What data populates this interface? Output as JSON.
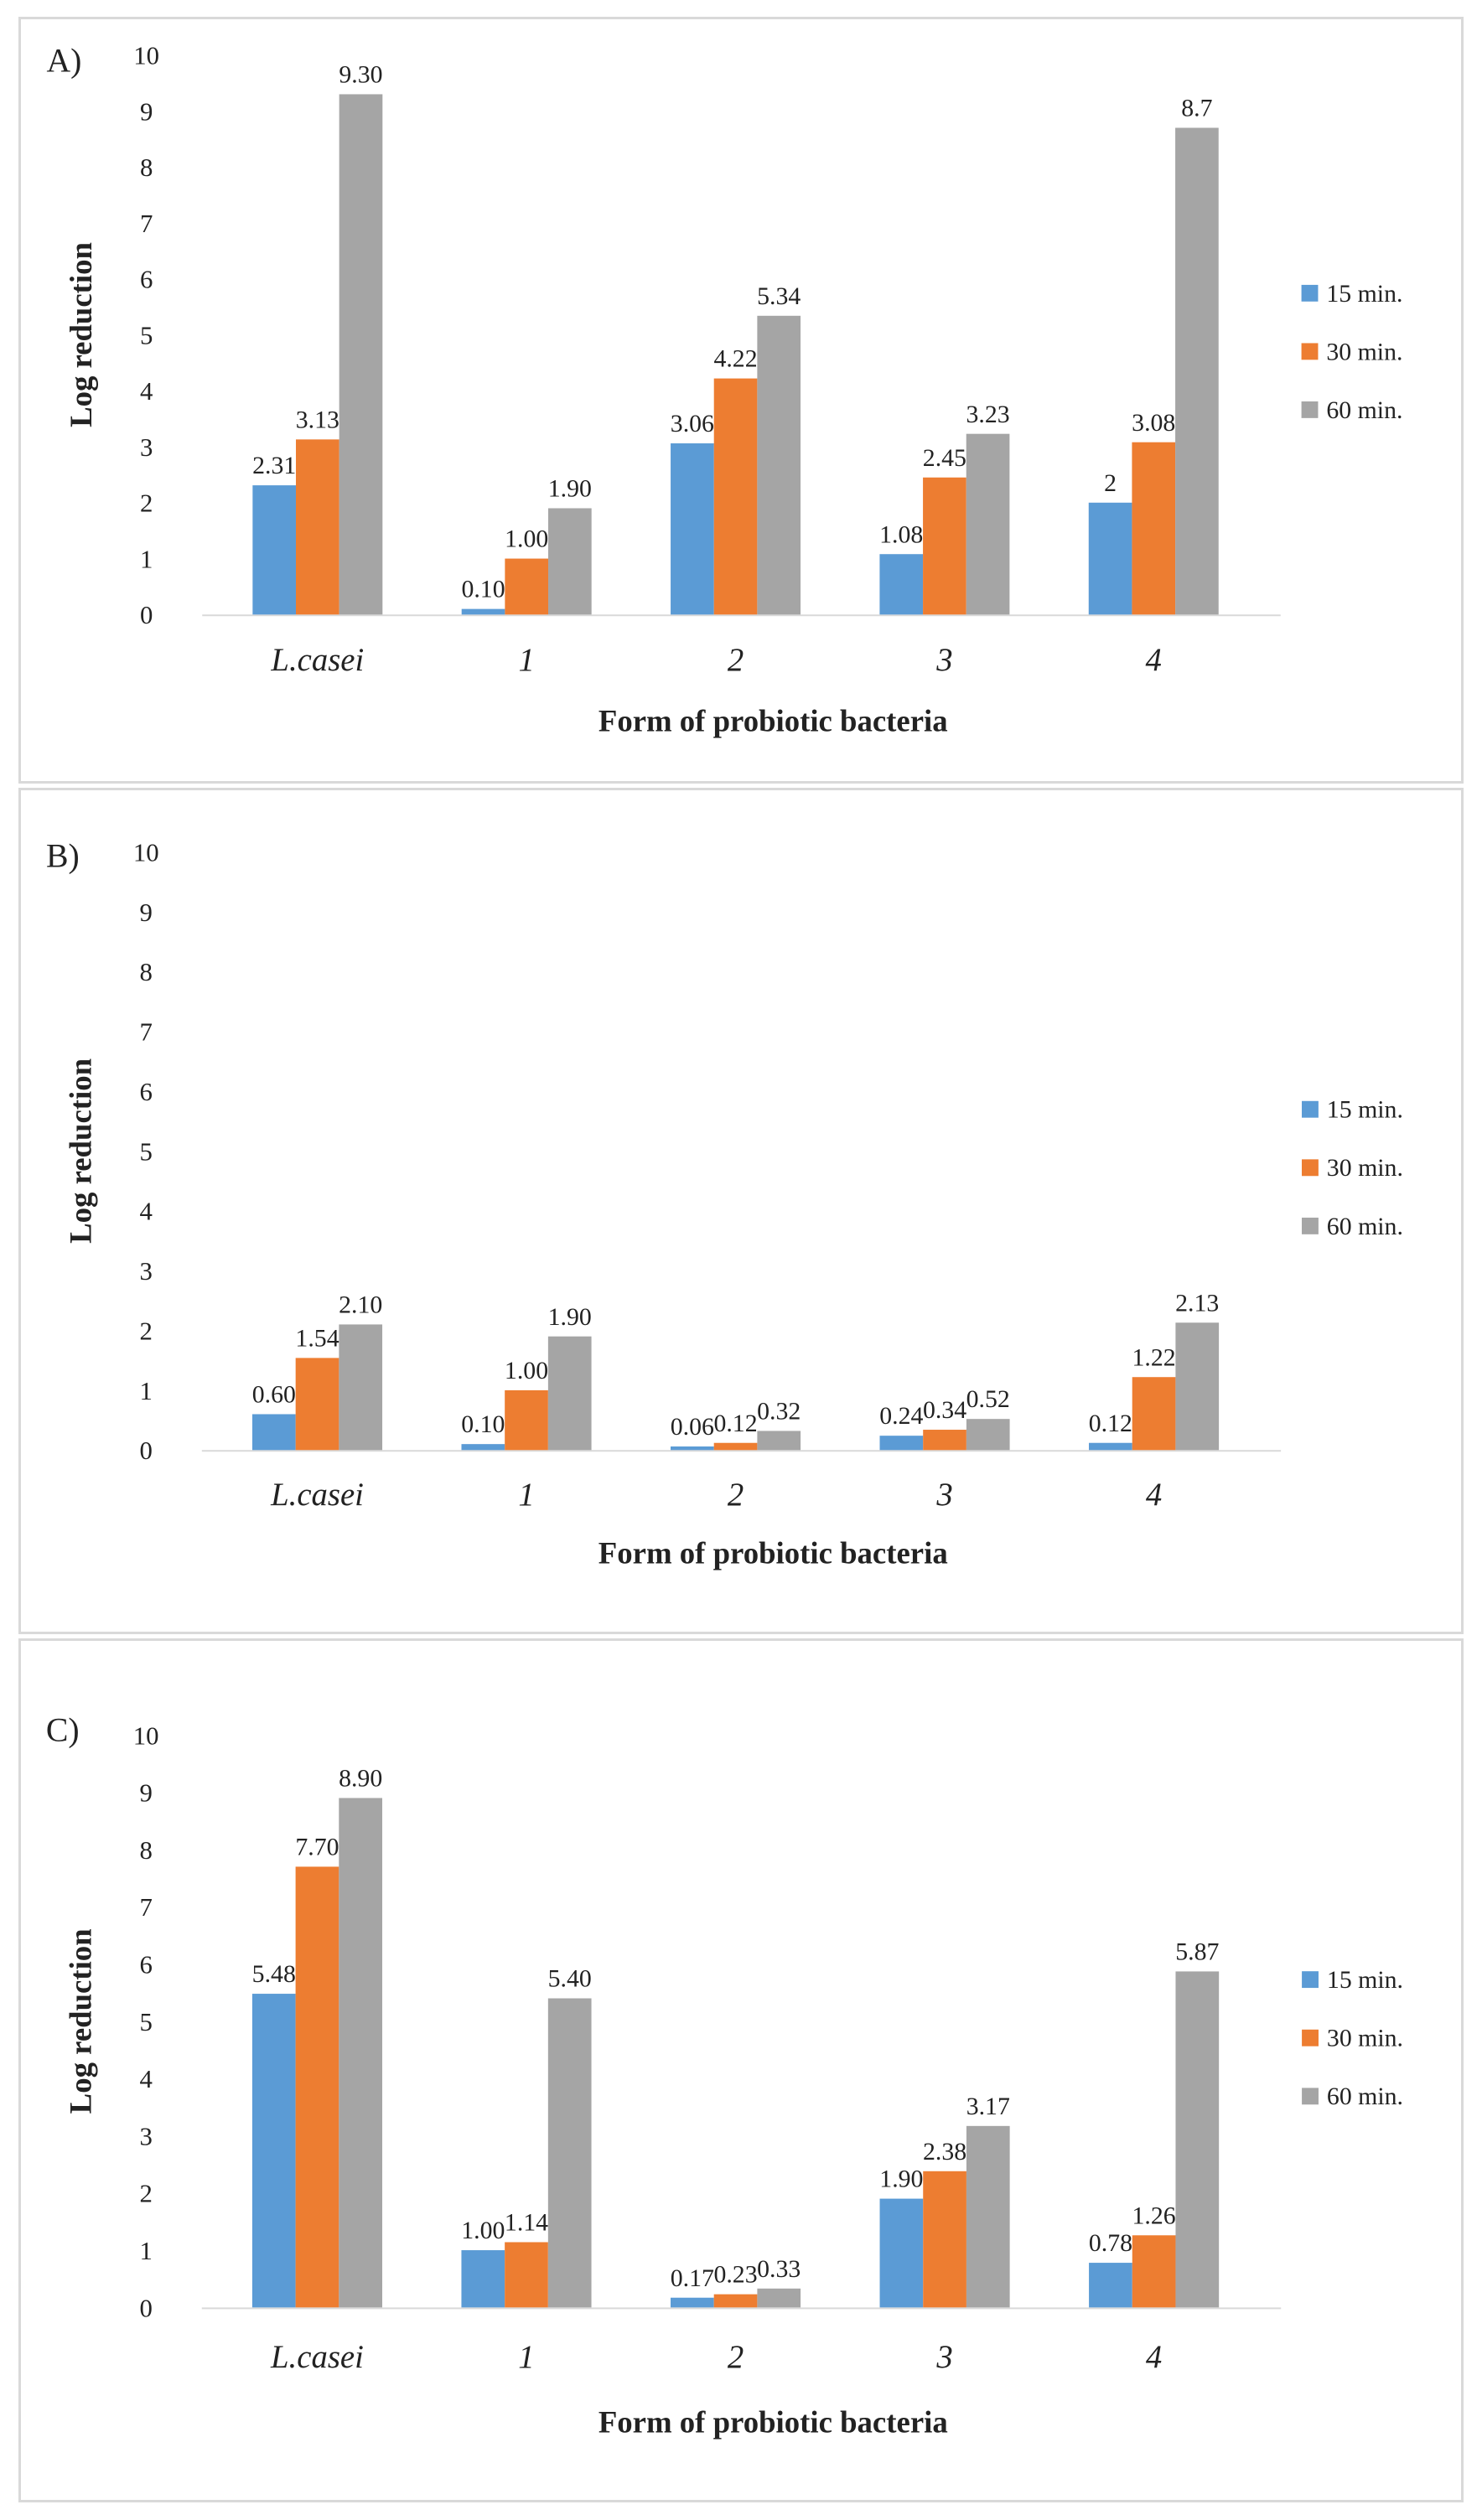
{
  "chart_data": [
    {
      "type": "bar",
      "panel_label": "A)",
      "categories": [
        "L.casei",
        "1",
        "2",
        "3",
        "4"
      ],
      "series": [
        {
          "name": "15 min.",
          "values": [
            2.31,
            0.1,
            3.06,
            1.08,
            2
          ],
          "labels": [
            "2.31",
            "0.10",
            "3.06",
            "1.08",
            "2"
          ]
        },
        {
          "name": "30 min.",
          "values": [
            3.13,
            1.0,
            4.22,
            2.45,
            3.08
          ],
          "labels": [
            "3.13",
            "1.00",
            "4.22",
            "2.45",
            "3.08"
          ]
        },
        {
          "name": "60 min.",
          "values": [
            9.3,
            1.9,
            5.34,
            3.23,
            8.7
          ],
          "labels": [
            "9.30",
            "1.90",
            "5.34",
            "3.23",
            "8.7"
          ]
        }
      ],
      "xlabel": "Form of probiotic bacteria",
      "ylabel": "Log reduction",
      "ylim": [
        0,
        10
      ],
      "yticks": [
        "0",
        "1",
        "2",
        "3",
        "4",
        "5",
        "6",
        "7",
        "8",
        "9",
        "10"
      ],
      "legend_position": "right"
    },
    {
      "type": "bar",
      "panel_label": "B)",
      "categories": [
        "L.casei",
        "1",
        "2",
        "3",
        "4"
      ],
      "series": [
        {
          "name": "15 min.",
          "values": [
            0.6,
            0.1,
            0.06,
            0.24,
            0.12
          ],
          "labels": [
            "0.60",
            "0.10",
            "0.06",
            "0.24",
            "0.12"
          ]
        },
        {
          "name": "30 min.",
          "values": [
            1.54,
            1.0,
            0.12,
            0.34,
            1.22
          ],
          "labels": [
            "1.54",
            "1.00",
            "0.12",
            "0.34",
            "1.22"
          ]
        },
        {
          "name": "60 min.",
          "values": [
            2.1,
            1.9,
            0.32,
            0.52,
            2.13
          ],
          "labels": [
            "2.10",
            "1.90",
            "0.32",
            "0.52",
            "2.13"
          ]
        }
      ],
      "xlabel": "Form of probiotic bacteria",
      "ylabel": "Log reduction",
      "ylim": [
        0,
        10
      ],
      "yticks": [
        "0",
        "1",
        "2",
        "3",
        "4",
        "5",
        "6",
        "7",
        "8",
        "9",
        "10"
      ],
      "legend_position": "right"
    },
    {
      "type": "bar",
      "panel_label": "C)",
      "categories": [
        "L.casei",
        "1",
        "2",
        "3",
        "4"
      ],
      "series": [
        {
          "name": "15 min.",
          "values": [
            5.48,
            1.0,
            0.17,
            1.9,
            0.78
          ],
          "labels": [
            "5.48",
            "1.00",
            "0.17",
            "1.90",
            "0.78"
          ]
        },
        {
          "name": "30 min.",
          "values": [
            7.7,
            1.14,
            0.23,
            2.38,
            1.26
          ],
          "labels": [
            "7.70",
            "1.14",
            "0.23",
            "2.38",
            "1.26"
          ]
        },
        {
          "name": "60 min.",
          "values": [
            8.9,
            5.4,
            0.33,
            3.17,
            5.87
          ],
          "labels": [
            "8.90",
            "5.40",
            "0.33",
            "3.17",
            "5.87"
          ]
        }
      ],
      "xlabel": "Form of probiotic bacteria",
      "ylabel": "Log reduction",
      "ylim": [
        0,
        10
      ],
      "yticks": [
        "0",
        "1",
        "2",
        "3",
        "4",
        "5",
        "6",
        "7",
        "8",
        "9",
        "10"
      ],
      "legend_position": "right"
    }
  ],
  "colors": {
    "series": [
      "#5b9bd5",
      "#ed7d31",
      "#a5a5a5"
    ],
    "axis": "#d9d9d9",
    "text": "#222222"
  }
}
